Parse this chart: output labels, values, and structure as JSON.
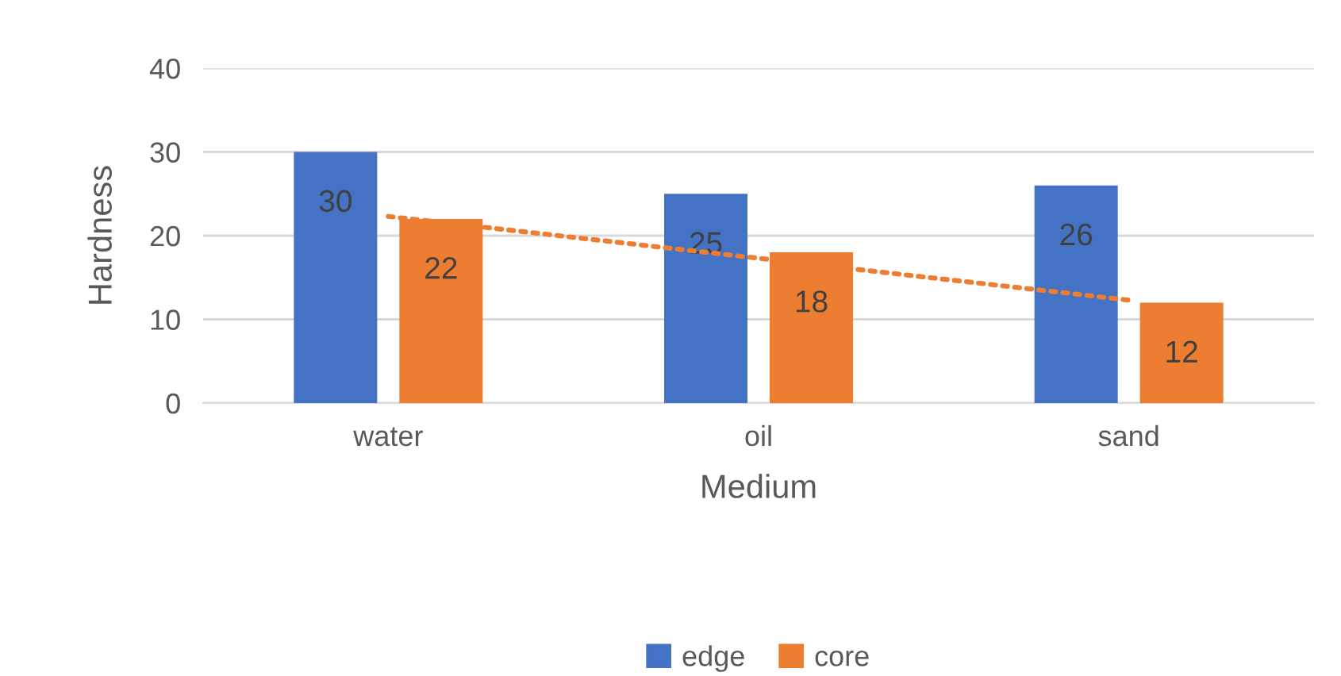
{
  "chart_data": {
    "type": "bar",
    "xlabel": "Medium",
    "ylabel": "Hardness",
    "categories": [
      "water",
      "oil",
      "sand"
    ],
    "series": [
      {
        "name": "edge",
        "color": "#4472c4",
        "values": [
          30,
          25,
          26
        ],
        "value_labels": [
          "30",
          "25",
          "26"
        ]
      },
      {
        "name": "core",
        "color": "#ed7d31",
        "values": [
          22,
          18,
          12
        ],
        "value_labels": [
          "22",
          "18",
          "12"
        ]
      },
      {
        "type": "line",
        "color": "#ed7d31",
        "line_style": "dotted",
        "values": [
          22.3,
          17.3,
          12.3
        ]
      }
    ],
    "ylim": [
      0,
      40
    ],
    "yticks": [
      0,
      10,
      20,
      30,
      40
    ],
    "grid": "y",
    "legend": "bottom"
  }
}
